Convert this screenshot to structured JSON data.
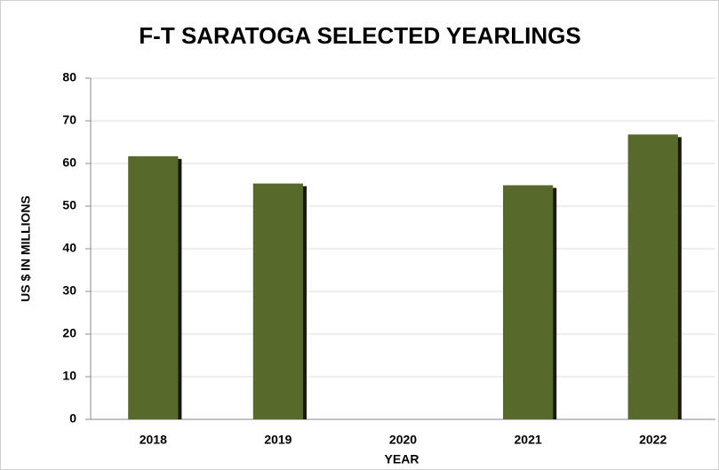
{
  "chart_data": {
    "type": "bar",
    "title": "F-T SARATOGA SELECTED YEARLINGS",
    "x_label": "YEAR",
    "y_label": "US $ IN MILLIONS",
    "categories": [
      "2018",
      "2019",
      "2020",
      "2021",
      "2022"
    ],
    "values": [
      61.7,
      55.3,
      null,
      54.9,
      66.8
    ],
    "color": "#586a2b",
    "ylim": [
      0,
      80
    ],
    "yticks": [
      0,
      10,
      20,
      30,
      40,
      50,
      60,
      70,
      80
    ],
    "grid": true
  }
}
